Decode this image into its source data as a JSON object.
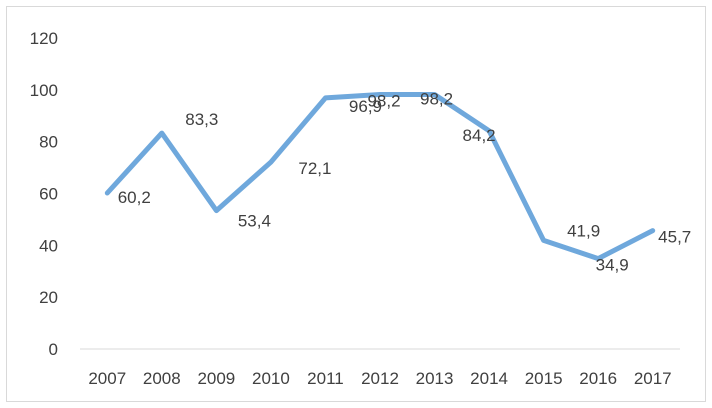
{
  "chart_data": {
    "type": "line",
    "title": "",
    "xlabel": "",
    "ylabel": "",
    "categories": [
      "2007",
      "2008",
      "2009",
      "2010",
      "2011",
      "2012",
      "2013",
      "2014",
      "2015",
      "2016",
      "2017"
    ],
    "series": [
      {
        "values": [
          60.2,
          83.3,
          53.4,
          72.1,
          96.9,
          98.2,
          98.2,
          84.2,
          41.9,
          34.9,
          45.7
        ],
        "labels": [
          "60,2",
          "83,3",
          "53,4",
          "72,1",
          "96,9",
          "98,2",
          "98,2",
          "84,2",
          "41,9",
          "34,9",
          "45,7"
        ]
      }
    ],
    "ylim": [
      0,
      120
    ],
    "yticks": [
      "0",
      "20",
      "40",
      "60",
      "80",
      "100",
      "120"
    ],
    "grid": false,
    "legend": "none",
    "line_color": "#6fa8dc"
  }
}
